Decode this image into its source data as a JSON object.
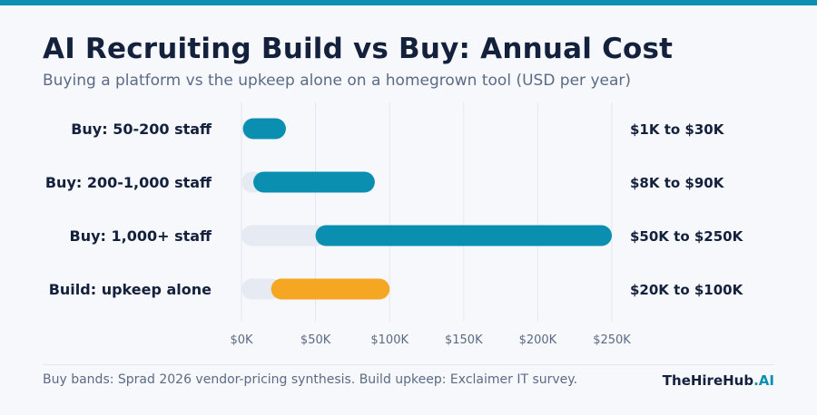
{
  "header": {
    "title": "AI Recruiting Build vs Buy: Annual Cost",
    "subtitle": "Buying a platform vs the upkeep alone on a homegrown tool (USD per year)"
  },
  "footer": {
    "source": "Buy bands: Sprad 2026 vendor-pricing synthesis. Build upkeep: Exclaimer IT survey.",
    "brand_main": "TheHireHub",
    "brand_accent": ".AI"
  },
  "colors": {
    "buy": "#0a8fb0",
    "build": "#f5a623",
    "track": "#e6ebf3",
    "grid": "#e3e8ef",
    "label": "#14213d",
    "tick": "#5b6b85"
  },
  "chart_data": {
    "type": "bar",
    "orientation": "horizontal-range",
    "xlim": [
      0,
      250000
    ],
    "xticks": [
      0,
      50000,
      100000,
      150000,
      200000,
      250000
    ],
    "xtick_labels": [
      "$0K",
      "$50K",
      "$100K",
      "$150K",
      "$200K",
      "$250K"
    ],
    "grid": true,
    "rows": [
      {
        "label": "Buy: 50-200 staff",
        "min": 1000,
        "max": 30000,
        "range_label": "$1K to $30K",
        "kind": "buy"
      },
      {
        "label": "Buy: 200-1,000 staff",
        "min": 8000,
        "max": 90000,
        "range_label": "$8K to $90K",
        "kind": "buy"
      },
      {
        "label": "Buy: 1,000+ staff",
        "min": 50000,
        "max": 250000,
        "range_label": "$50K to $250K",
        "kind": "buy"
      },
      {
        "label": "Build: upkeep alone",
        "min": 20000,
        "max": 100000,
        "range_label": "$20K to $100K",
        "kind": "build"
      }
    ]
  }
}
